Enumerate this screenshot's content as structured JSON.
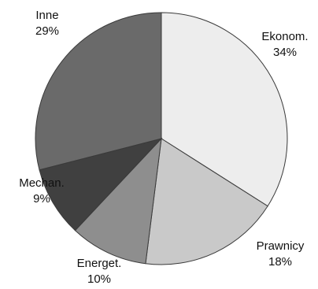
{
  "chart_data": {
    "type": "pie",
    "slices": [
      {
        "label": "Ekonom.",
        "value": 34,
        "percent_label": "34%",
        "color": "#ededed"
      },
      {
        "label": "Prawnicy",
        "value": 18,
        "percent_label": "18%",
        "color": "#c9c9c9"
      },
      {
        "label": "Energet.",
        "value": 10,
        "percent_label": "10%",
        "color": "#8e8e8e"
      },
      {
        "label": "Mechan.",
        "value": 9,
        "percent_label": "9%",
        "color": "#404040"
      },
      {
        "label": "Inne",
        "value": 29,
        "percent_label": "29%",
        "color": "#6a6a6a"
      }
    ],
    "start": "12 o'clock",
    "direction": "clockwise",
    "legend": "none"
  }
}
